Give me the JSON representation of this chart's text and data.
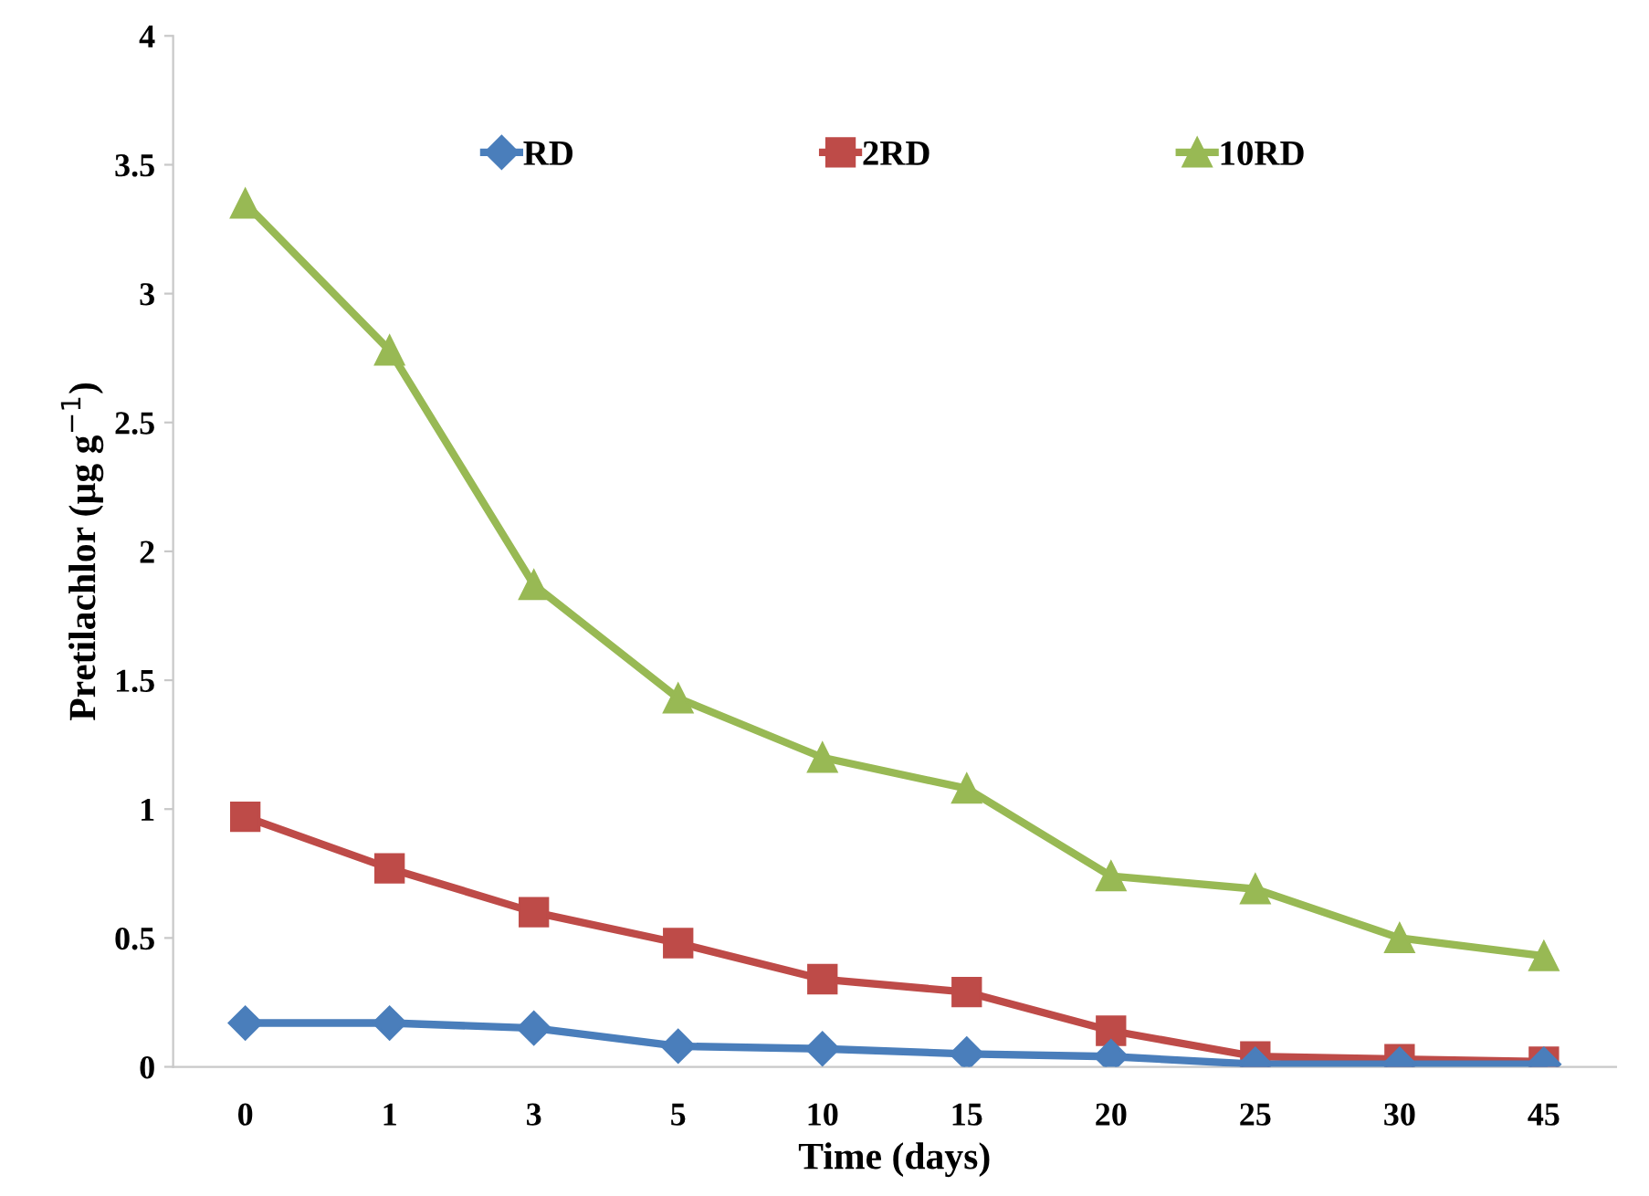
{
  "chart_data": {
    "type": "line",
    "xlabel": "Time (days)",
    "ylabel": "Pretilachlor (µg g$^{−1}$)",
    "categories": [
      "0",
      "1",
      "3",
      "5",
      "10",
      "15",
      "20",
      "25",
      "30",
      "45"
    ],
    "series": [
      {
        "name": "RD",
        "color": "#4a7ebb",
        "marker": "diamond",
        "values": [
          0.17,
          0.17,
          0.15,
          0.08,
          0.07,
          0.05,
          0.04,
          0.01,
          0.01,
          0.01
        ]
      },
      {
        "name": "2RD",
        "color": "#be4b48",
        "marker": "square",
        "values": [
          0.97,
          0.77,
          0.6,
          0.48,
          0.34,
          0.29,
          0.14,
          0.04,
          0.03,
          0.02
        ]
      },
      {
        "name": "10RD",
        "color": "#98b954",
        "marker": "triangle",
        "values": [
          3.35,
          2.78,
          1.87,
          1.43,
          1.2,
          1.08,
          0.74,
          0.69,
          0.5,
          0.43
        ]
      }
    ],
    "ylim": [
      0,
      4
    ],
    "yticks": [
      0,
      0.5,
      1,
      1.5,
      2,
      2.5,
      3,
      3.5,
      4
    ],
    "grid": false,
    "legend": "top",
    "line_style": "solid"
  }
}
